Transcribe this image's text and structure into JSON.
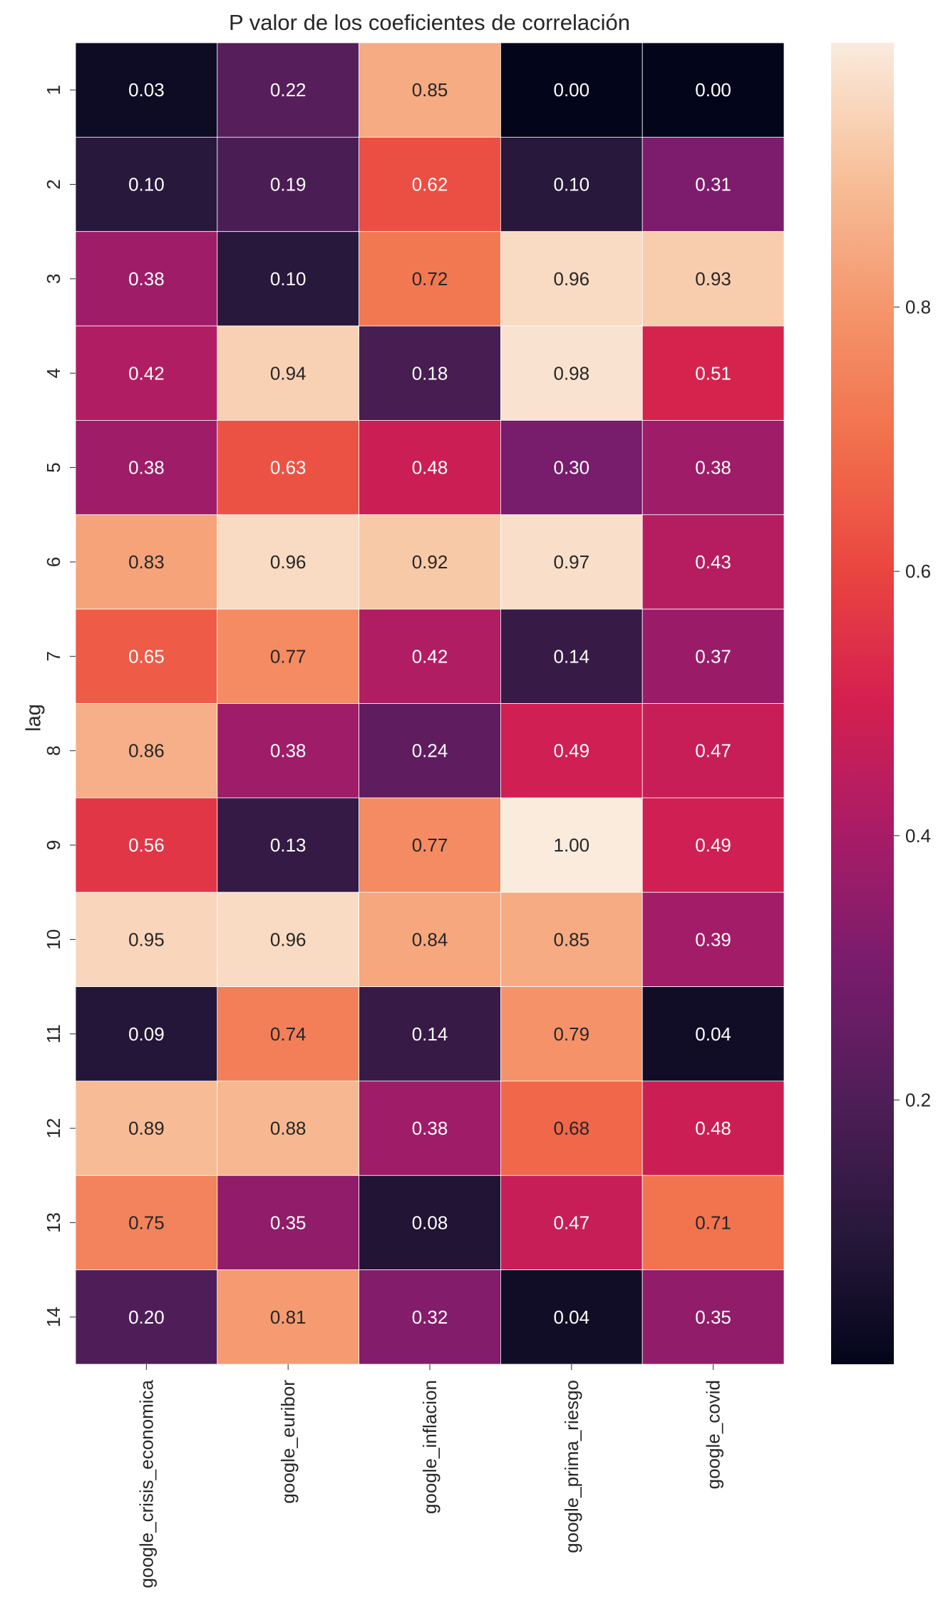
{
  "chart_data": {
    "type": "heatmap",
    "title": "P valor de los coeficientes de correlación",
    "ylabel": "lag",
    "xlabel": "",
    "columns": [
      "google_crisis_economica",
      "google_euribor",
      "google_inflacion",
      "google_prima_riesgo",
      "google_covid"
    ],
    "rows": [
      "1",
      "2",
      "3",
      "4",
      "5",
      "6",
      "7",
      "8",
      "9",
      "10",
      "11",
      "12",
      "13",
      "14"
    ],
    "values": [
      [
        0.03,
        0.22,
        0.85,
        0.0,
        0.0
      ],
      [
        0.1,
        0.19,
        0.62,
        0.1,
        0.31
      ],
      [
        0.38,
        0.1,
        0.72,
        0.96,
        0.93
      ],
      [
        0.42,
        0.94,
        0.18,
        0.98,
        0.51
      ],
      [
        0.38,
        0.63,
        0.48,
        0.3,
        0.38
      ],
      [
        0.83,
        0.96,
        0.92,
        0.97,
        0.43
      ],
      [
        0.65,
        0.77,
        0.42,
        0.14,
        0.37
      ],
      [
        0.86,
        0.38,
        0.24,
        0.49,
        0.47
      ],
      [
        0.56,
        0.13,
        0.77,
        1.0,
        0.49
      ],
      [
        0.95,
        0.96,
        0.84,
        0.85,
        0.39
      ],
      [
        0.09,
        0.74,
        0.14,
        0.79,
        0.04
      ],
      [
        0.89,
        0.88,
        0.38,
        0.68,
        0.48
      ],
      [
        0.75,
        0.35,
        0.08,
        0.47,
        0.71
      ],
      [
        0.2,
        0.81,
        0.32,
        0.04,
        0.35
      ]
    ],
    "value_format": "0.00",
    "colormap": "rocket",
    "vmin": 0.0,
    "vmax": 1.0,
    "colorbar_ticks": [
      "0.2",
      "0.4",
      "0.6",
      "0.8"
    ],
    "colorbar_tick_values": [
      0.2,
      0.4,
      0.6,
      0.8
    ],
    "grid": false
  }
}
